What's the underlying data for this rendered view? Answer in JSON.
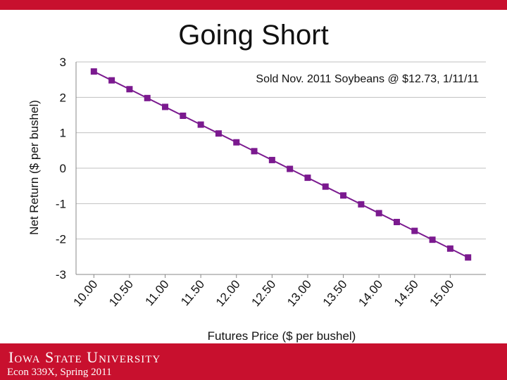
{
  "slide": {
    "title": "Going Short",
    "university": "Iowa State University",
    "course": "Econ 339X, Spring 2011"
  },
  "colors": {
    "accent": "#c8102e",
    "series": "#7b1a8f",
    "grid": "#c0c0c0"
  },
  "chart_data": {
    "type": "line",
    "title": "",
    "annotation": "Sold Nov. 2011 Soybeans @ $12.73, 1/11/11",
    "xlabel": "Futures Price ($ per bushel)",
    "ylabel": "Net Return ($ per bushel)",
    "ylim": [
      -3,
      3
    ],
    "yticks": [
      "3",
      "2",
      "1",
      "0",
      "-1",
      "-2",
      "-3"
    ],
    "grid": true,
    "legend": "none",
    "x_tick_labels": [
      "10.00",
      "10.50",
      "11.00",
      "11.50",
      "12.00",
      "12.50",
      "13.00",
      "13.50",
      "14.00",
      "14.50",
      "15.00"
    ],
    "series": [
      {
        "name": "Net Return",
        "x": [
          10.0,
          10.25,
          10.5,
          10.75,
          11.0,
          11.25,
          11.5,
          11.75,
          12.0,
          12.25,
          12.5,
          12.75,
          13.0,
          13.25,
          13.5,
          13.75,
          14.0,
          14.25,
          14.5,
          14.75,
          15.0,
          15.25
        ],
        "values": [
          2.73,
          2.48,
          2.23,
          1.98,
          1.73,
          1.48,
          1.23,
          0.98,
          0.73,
          0.48,
          0.23,
          -0.02,
          -0.27,
          -0.52,
          -0.77,
          -1.02,
          -1.27,
          -1.52,
          -1.77,
          -2.02,
          -2.27,
          -2.52
        ]
      }
    ]
  }
}
